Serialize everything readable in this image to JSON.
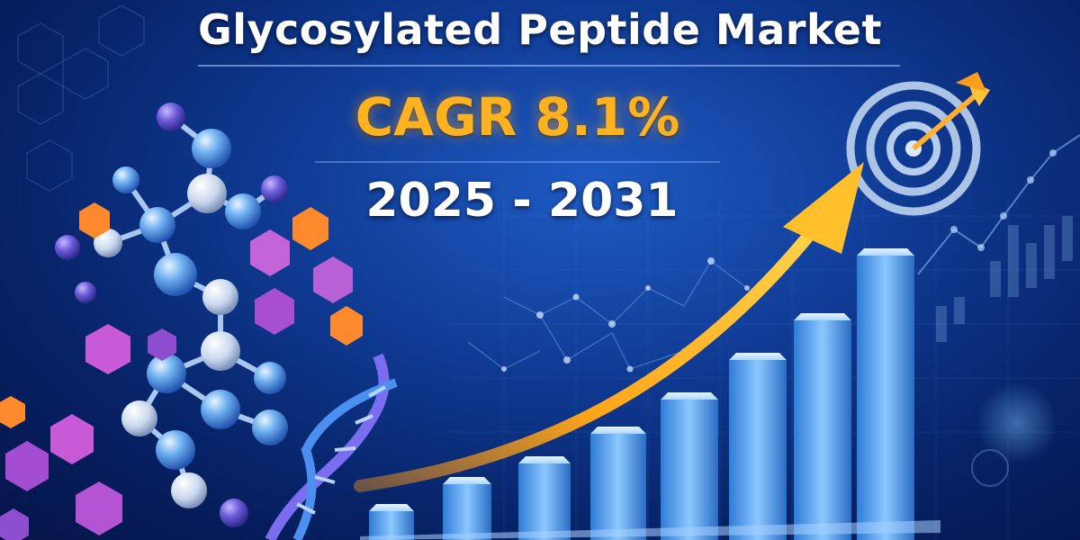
{
  "title": "Glycosylated Peptide Market",
  "cagr_label": "CAGR 8.1%",
  "period_label": "2025 - 2031",
  "colors": {
    "background": "#0f3a92",
    "title_text": "#ffffff",
    "cagr_text": "#ffb21f",
    "arrow": "#ffa51a",
    "bars": "#5aa9ec",
    "molecule_blue": "#6fb0f0",
    "molecule_purple": "#b565d8",
    "molecule_orange": "#f0852c"
  },
  "icons": [
    "molecule-cluster-icon",
    "dna-helix-icon",
    "target-icon",
    "arrow-icon",
    "bar-chart-icon"
  ]
}
